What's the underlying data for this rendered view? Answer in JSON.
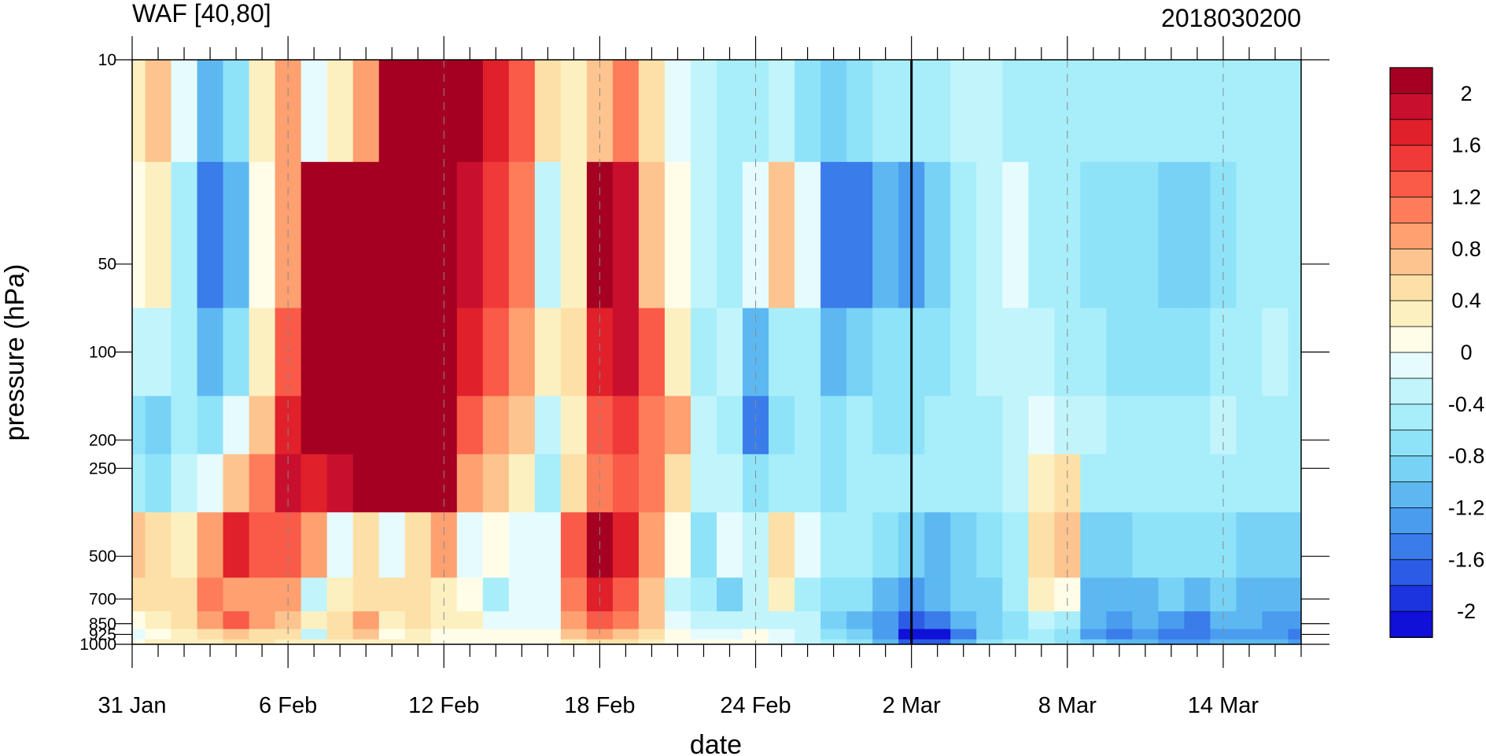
{
  "chart_data": {
    "type": "heatmap",
    "title": "WAF [40,80]",
    "subtitle": "2018030200",
    "xlabel": "date",
    "ylabel": "pressure (hPa)",
    "x_tick_labels": [
      "31 Jan",
      "6 Feb",
      "12 Feb",
      "18 Feb",
      "24 Feb",
      "2 Mar",
      "8 Mar",
      "14 Mar"
    ],
    "x_tick_days": [
      0,
      6,
      12,
      18,
      24,
      30,
      36,
      42
    ],
    "x_range_days": [
      0,
      45
    ],
    "y_tick_labels": [
      "10",
      "50",
      "100",
      "200",
      "250",
      "500",
      "700",
      "850",
      "925",
      "1000"
    ],
    "y_levels": [
      10,
      50,
      100,
      200,
      250,
      500,
      700,
      850,
      925,
      1000
    ],
    "y_scale": "log",
    "y_reversed": true,
    "marker_line_day": 30,
    "colorbar": {
      "labels": [
        "2",
        "1.6",
        "1.2",
        "0.8",
        "0.4",
        "0",
        "-0.4",
        "-0.8",
        "-1.2",
        "-1.6",
        "-2"
      ],
      "levels": [
        2.2,
        2.0,
        1.8,
        1.6,
        1.4,
        1.2,
        1.0,
        0.8,
        0.6,
        0.4,
        0.2,
        0.0,
        -0.2,
        -0.4,
        -0.6,
        -0.8,
        -1.0,
        -1.2,
        -1.4,
        -1.6,
        -1.8,
        -2.0,
        -2.2
      ],
      "colors": [
        "#a50021",
        "#c8102e",
        "#e0202a",
        "#f03a38",
        "#fa5a48",
        "#fd7d5a",
        "#fea070",
        "#fdc48f",
        "#fde0a8",
        "#fdf0c0",
        "#fffde8",
        "#e6fbfe",
        "#c2f4fb",
        "#a8eefa",
        "#8fe3f8",
        "#77d2f6",
        "#5db8f2",
        "#4a9cef",
        "#3a7cea",
        "#2c5ce6",
        "#1c34e0",
        "#1010d8"
      ]
    },
    "series": [
      {
        "day": 0,
        "values": [
          0.3,
          0.0,
          -0.4,
          -0.8,
          -0.6,
          0.6,
          0.4,
          0.0,
          -0.2,
          0.0
        ]
      },
      {
        "day": 1,
        "values": [
          0.6,
          0.2,
          -0.4,
          -0.9,
          -0.8,
          0.4,
          0.4,
          0.2,
          0.0,
          0.2
        ]
      },
      {
        "day": 2,
        "values": [
          -0.2,
          -0.6,
          -0.6,
          -0.6,
          -0.4,
          0.3,
          0.5,
          0.4,
          0.2,
          0.2
        ]
      },
      {
        "day": 3,
        "values": [
          -1.2,
          -1.6,
          -1.2,
          -0.8,
          -0.2,
          0.8,
          1.0,
          0.8,
          0.4,
          0.3
        ]
      },
      {
        "day": 4,
        "values": [
          -0.8,
          -1.2,
          -0.8,
          -0.2,
          0.6,
          1.6,
          0.8,
          1.2,
          0.6,
          0.4
        ]
      },
      {
        "day": 5,
        "values": [
          0.2,
          0.0,
          0.2,
          0.6,
          1.0,
          1.2,
          0.8,
          0.8,
          0.5,
          0.4
        ]
      },
      {
        "day": 6,
        "values": [
          0.8,
          0.8,
          1.2,
          1.6,
          1.8,
          1.2,
          0.8,
          0.6,
          0.4,
          0.3
        ]
      },
      {
        "day": 7,
        "values": [
          -0.2,
          2.0,
          2.4,
          2.2,
          1.6,
          0.8,
          -0.4,
          0.2,
          -0.4,
          0.2
        ]
      },
      {
        "day": 8,
        "values": [
          0.2,
          2.4,
          2.4,
          2.2,
          1.8,
          -0.2,
          0.2,
          0.4,
          0.4,
          0.2
        ]
      },
      {
        "day": 9,
        "values": [
          0.8,
          2.4,
          2.4,
          2.2,
          2.0,
          0.4,
          0.4,
          0.8,
          0.6,
          0.3
        ]
      },
      {
        "day": 10,
        "values": [
          2.4,
          2.4,
          2.4,
          2.2,
          2.0,
          -0.2,
          0.4,
          0.2,
          0.0,
          0.2
        ]
      },
      {
        "day": 11,
        "values": [
          2.4,
          2.4,
          2.4,
          2.2,
          2.0,
          0.4,
          0.4,
          0.4,
          0.2,
          0.2
        ]
      },
      {
        "day": 12,
        "values": [
          2.4,
          2.4,
          2.4,
          2.4,
          2.0,
          0.8,
          0.2,
          0.2,
          0.0,
          0.1
        ]
      },
      {
        "day": 13,
        "values": [
          2.0,
          1.8,
          1.6,
          1.2,
          0.8,
          -0.2,
          0.0,
          0.2,
          0.0,
          0.1
        ]
      },
      {
        "day": 14,
        "values": [
          1.6,
          1.4,
          1.2,
          0.8,
          0.6,
          0.0,
          -0.6,
          -0.2,
          0.0,
          0.1
        ]
      },
      {
        "day": 15,
        "values": [
          1.2,
          1.0,
          0.8,
          0.6,
          0.2,
          -0.2,
          -0.2,
          -0.2,
          0.0,
          0.0
        ]
      },
      {
        "day": 16,
        "values": [
          0.4,
          -0.4,
          0.2,
          -0.4,
          -0.6,
          -0.2,
          -0.2,
          -0.2,
          0.0,
          0.0
        ]
      },
      {
        "day": 17,
        "values": [
          0.2,
          0.2,
          0.4,
          0.2,
          0.4,
          1.2,
          1.0,
          0.8,
          0.6,
          0.3
        ]
      },
      {
        "day": 18,
        "values": [
          0.6,
          2.4,
          1.6,
          1.2,
          1.0,
          2.2,
          1.6,
          1.2,
          0.8,
          0.4
        ]
      },
      {
        "day": 19,
        "values": [
          1.0,
          1.8,
          1.8,
          1.4,
          1.2,
          1.6,
          1.2,
          1.0,
          0.6,
          0.4
        ]
      },
      {
        "day": 20,
        "values": [
          0.4,
          0.6,
          1.2,
          1.0,
          1.0,
          0.8,
          0.6,
          0.6,
          0.4,
          0.2
        ]
      },
      {
        "day": 21,
        "values": [
          -0.2,
          0.0,
          0.2,
          0.8,
          0.4,
          0.0,
          -0.4,
          -0.2,
          0.0,
          0.0
        ]
      },
      {
        "day": 22,
        "values": [
          -0.4,
          -0.4,
          -0.6,
          -0.4,
          -0.4,
          -0.8,
          -0.6,
          -0.4,
          -0.2,
          0.0
        ]
      },
      {
        "day": 23,
        "values": [
          -0.6,
          -0.6,
          -0.4,
          -0.6,
          -0.4,
          -0.2,
          -1.0,
          -0.4,
          -0.2,
          0.0
        ]
      },
      {
        "day": 24,
        "values": [
          -0.6,
          -0.2,
          -1.2,
          -1.6,
          -0.8,
          -0.4,
          -0.4,
          -0.4,
          0.0,
          0.0
        ]
      },
      {
        "day": 25,
        "values": [
          -0.4,
          0.6,
          -0.6,
          -0.8,
          -0.6,
          0.4,
          0.2,
          -0.4,
          -0.2,
          -0.2
        ]
      },
      {
        "day": 26,
        "values": [
          -0.8,
          -0.2,
          -0.6,
          -0.6,
          -0.6,
          -0.2,
          -0.6,
          -0.4,
          -0.4,
          -0.4
        ]
      },
      {
        "day": 27,
        "values": [
          -1.0,
          -1.6,
          -1.2,
          -0.8,
          -0.8,
          -0.6,
          -0.8,
          -1.0,
          -0.8,
          -0.6
        ]
      },
      {
        "day": 28,
        "values": [
          -0.8,
          -1.6,
          -1.0,
          -0.6,
          -0.6,
          -0.6,
          -0.8,
          -1.2,
          -1.0,
          -0.8
        ]
      },
      {
        "day": 29,
        "values": [
          -0.6,
          -1.2,
          -0.8,
          -0.8,
          -0.6,
          -0.8,
          -1.2,
          -1.4,
          -1.4,
          -1.2
        ]
      },
      {
        "day": 30,
        "values": [
          -0.6,
          -1.4,
          -0.8,
          -0.8,
          -0.6,
          -1.0,
          -1.4,
          -1.8,
          -2.2,
          -1.8
        ]
      },
      {
        "day": 31,
        "values": [
          -0.6,
          -1.0,
          -0.8,
          -0.6,
          -0.6,
          -1.2,
          -1.2,
          -1.6,
          -2.2,
          -1.8
        ]
      },
      {
        "day": 32,
        "values": [
          -0.4,
          -0.6,
          -0.6,
          -0.6,
          -0.6,
          -1.0,
          -1.0,
          -1.2,
          -1.6,
          -1.2
        ]
      },
      {
        "day": 33,
        "values": [
          -0.4,
          -0.4,
          -0.4,
          -0.6,
          -0.6,
          -0.8,
          -1.0,
          -1.0,
          -1.0,
          -0.8
        ]
      },
      {
        "day": 34,
        "values": [
          -0.6,
          -0.2,
          -0.4,
          -0.4,
          -0.4,
          -0.6,
          -0.6,
          -0.8,
          -0.8,
          -0.6
        ]
      },
      {
        "day": 35,
        "values": [
          -0.6,
          -0.6,
          -0.4,
          -0.2,
          0.2,
          0.4,
          0.2,
          -0.4,
          -0.6,
          -0.6
        ]
      },
      {
        "day": 36,
        "values": [
          -0.6,
          -0.6,
          -0.6,
          -0.4,
          0.4,
          0.6,
          0.0,
          -0.6,
          -0.8,
          -0.8
        ]
      },
      {
        "day": 37,
        "values": [
          -0.6,
          -0.8,
          -0.6,
          -0.4,
          -0.6,
          -1.0,
          -1.2,
          -1.2,
          -1.4,
          -1.0
        ]
      },
      {
        "day": 38,
        "values": [
          -0.6,
          -0.8,
          -0.8,
          -0.6,
          -0.6,
          -1.0,
          -1.2,
          -1.4,
          -1.6,
          -1.2
        ]
      },
      {
        "day": 39,
        "values": [
          -0.6,
          -0.8,
          -0.8,
          -0.6,
          -0.6,
          -0.8,
          -1.2,
          -1.2,
          -1.4,
          -1.2
        ]
      },
      {
        "day": 40,
        "values": [
          -0.6,
          -1.0,
          -0.8,
          -0.6,
          -0.6,
          -0.8,
          -1.0,
          -1.4,
          -1.6,
          -1.4
        ]
      },
      {
        "day": 41,
        "values": [
          -0.6,
          -1.0,
          -0.8,
          -0.6,
          -0.6,
          -0.8,
          -1.2,
          -1.6,
          -1.6,
          -1.4
        ]
      },
      {
        "day": 42,
        "values": [
          -0.6,
          -0.8,
          -0.6,
          -0.4,
          -0.6,
          -0.8,
          -1.0,
          -1.2,
          -1.4,
          -1.2
        ]
      },
      {
        "day": 43,
        "values": [
          -0.6,
          -0.6,
          -0.6,
          -0.6,
          -0.6,
          -1.0,
          -1.2,
          -1.2,
          -1.4,
          -1.2
        ]
      },
      {
        "day": 44,
        "values": [
          -0.6,
          -0.6,
          -0.4,
          -0.6,
          -0.6,
          -1.0,
          -1.2,
          -1.4,
          -1.4,
          -1.2
        ]
      },
      {
        "day": 45,
        "values": [
          -0.6,
          -0.6,
          -0.6,
          -0.6,
          -0.6,
          -1.0,
          -1.2,
          -1.4,
          -1.6,
          -1.4
        ]
      }
    ]
  }
}
